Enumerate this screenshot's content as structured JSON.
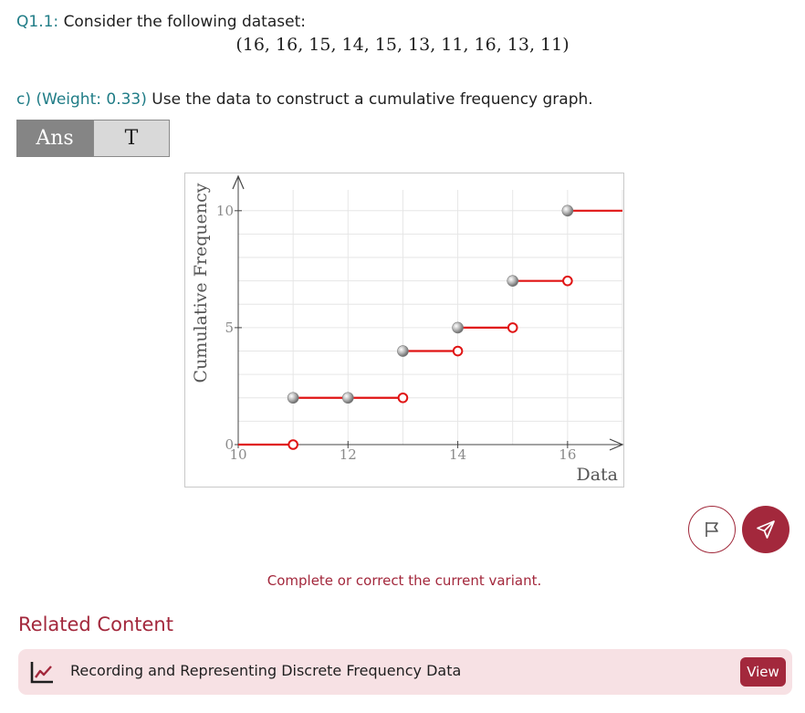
{
  "question": {
    "label": "Q1.1:",
    "text": "Consider the following dataset:",
    "dataset": "(16, 16, 15, 14, 15, 13, 11, 16, 13, 11)"
  },
  "part": {
    "label": "c) (Weight: 0.33)",
    "text": "Use the data to construct a cumulative frequency graph."
  },
  "tabs": [
    {
      "label": "Ans",
      "active": true
    },
    {
      "label": "T",
      "active": false
    }
  ],
  "chart_data": {
    "type": "line",
    "subtype": "step-cumulative-frequency",
    "title": "",
    "xlabel": "Data",
    "ylabel": "Cumulative Frequency",
    "xlim": [
      10,
      17
    ],
    "ylim": [
      0,
      10.5
    ],
    "x_ticks": [
      10,
      12,
      14,
      16
    ],
    "y_ticks": [
      0,
      5,
      10
    ],
    "grid": true,
    "series": [
      {
        "steps": [
          {
            "x0": 10,
            "x1": 11,
            "y": 0
          },
          {
            "x0": 11,
            "x1": 12,
            "y": 2
          },
          {
            "x0": 12,
            "x1": 13,
            "y": 2
          },
          {
            "x0": 13,
            "x1": 14,
            "y": 4
          },
          {
            "x0": 14,
            "x1": 15,
            "y": 5
          },
          {
            "x0": 15,
            "x1": 16,
            "y": 7
          },
          {
            "x0": 16,
            "x1": 17,
            "y": 10
          }
        ],
        "closed_points": [
          [
            11,
            2
          ],
          [
            12,
            2
          ],
          [
            13,
            4
          ],
          [
            14,
            5
          ],
          [
            15,
            7
          ],
          [
            16,
            10
          ]
        ],
        "open_points": [
          [
            11,
            0
          ],
          [
            13,
            2
          ],
          [
            14,
            4
          ],
          [
            15,
            5
          ],
          [
            16,
            7
          ]
        ]
      }
    ],
    "colors": {
      "step": "#e01414",
      "closed": "#8d8d8d",
      "grid": "#e6e6e6",
      "axis": "#444444"
    }
  },
  "actions": {
    "flag_icon": "flag-icon",
    "submit_icon": "paper-plane-icon"
  },
  "status": "Complete or correct the current variant.",
  "related": {
    "heading": "Related Content",
    "items": [
      {
        "icon": "line-chart-icon",
        "title": "Recording and Representing Discrete Frequency Data",
        "button": "View"
      }
    ]
  },
  "colors": {
    "teal": "#1f7c86",
    "brand": "#a3283c",
    "card_bg": "#f7e1e4"
  }
}
